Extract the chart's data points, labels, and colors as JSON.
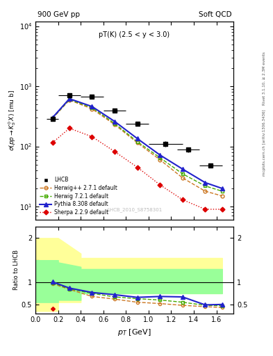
{
  "title_left": "900 GeV pp",
  "title_right": "Soft QCD",
  "annotation": "pT(K) (2.5 < y < 3.0)",
  "watermark": "LHCB_2010_S8758301",
  "rivet_label": "Rivet 3.1.10, ≥ 2.3M events",
  "arxiv_label": "mcplots.cern.ch [arXiv:1306.3436]",
  "ylabel_main": "σ(pp→K°_S X) [mu b]",
  "ylabel_ratio": "Ratio to LHCB",
  "xlabel": "p_T [GeV]",
  "lhcb_x": [
    0.15,
    0.3,
    0.5,
    0.7,
    0.9,
    1.15,
    1.35,
    1.55
  ],
  "lhcb_y": [
    290,
    700,
    680,
    390,
    240,
    110,
    88,
    48
  ],
  "lhcb_xerr": [
    0.05,
    0.1,
    0.1,
    0.1,
    0.1,
    0.15,
    0.1,
    0.1
  ],
  "lhcb_yerr": [
    25,
    50,
    50,
    30,
    18,
    12,
    8,
    4
  ],
  "herwig1_x": [
    0.15,
    0.3,
    0.5,
    0.7,
    0.9,
    1.1,
    1.3,
    1.5,
    1.65
  ],
  "herwig1_y": [
    290,
    590,
    420,
    230,
    115,
    60,
    30,
    18,
    15
  ],
  "herwig2_x": [
    0.15,
    0.3,
    0.5,
    0.7,
    0.9,
    1.1,
    1.3,
    1.5,
    1.65
  ],
  "herwig2_y": [
    295,
    600,
    440,
    240,
    120,
    65,
    35,
    22,
    18
  ],
  "pythia_x": [
    0.15,
    0.3,
    0.5,
    0.7,
    0.9,
    1.1,
    1.3,
    1.5,
    1.65
  ],
  "pythia_y": [
    300,
    620,
    460,
    260,
    135,
    72,
    42,
    25,
    20
  ],
  "sherpa_x": [
    0.15,
    0.3,
    0.5,
    0.7,
    0.9,
    1.1,
    1.3,
    1.5,
    1.65
  ],
  "sherpa_y": [
    115,
    200,
    145,
    82,
    45,
    23,
    13,
    9,
    9
  ],
  "ratio_herwig1_x": [
    0.15,
    0.3,
    0.5,
    0.7,
    0.9,
    1.1,
    1.3,
    1.5,
    1.65
  ],
  "ratio_herwig1_y": [
    0.97,
    0.84,
    0.68,
    0.62,
    0.55,
    0.52,
    0.48,
    0.45,
    0.43
  ],
  "ratio_herwig2_x": [
    0.15,
    0.3,
    0.5,
    0.7,
    0.9,
    1.1,
    1.3,
    1.5,
    1.65
  ],
  "ratio_herwig2_y": [
    0.99,
    0.85,
    0.75,
    0.67,
    0.63,
    0.6,
    0.55,
    0.48,
    0.47
  ],
  "ratio_pythia_x": [
    0.15,
    0.3,
    0.5,
    0.7,
    0.9,
    1.1,
    1.3,
    1.5,
    1.65
  ],
  "ratio_pythia_y": [
    1.01,
    0.87,
    0.77,
    0.72,
    0.66,
    0.68,
    0.67,
    0.49,
    0.5
  ],
  "ratio_sherpa_x": [
    0.15
  ],
  "ratio_sherpa_y": [
    0.4
  ],
  "band_yellow_x": [
    0.0,
    0.2,
    0.2,
    0.4,
    0.4,
    1.65,
    1.65
  ],
  "band_yellow_lo_y": [
    0.35,
    0.35,
    0.55,
    0.55,
    0.75,
    0.75,
    0.75
  ],
  "band_yellow_hi_y": [
    2.0,
    2.0,
    2.0,
    1.65,
    1.55,
    1.55,
    1.55
  ],
  "band_green_x": [
    0.0,
    0.2,
    0.2,
    0.4,
    0.4,
    1.65,
    1.65
  ],
  "band_green_lo_y": [
    0.55,
    0.55,
    0.6,
    0.6,
    0.75,
    0.75,
    0.75
  ],
  "band_green_hi_y": [
    1.5,
    1.5,
    1.45,
    1.35,
    1.3,
    1.3,
    1.3
  ],
  "color_lhcb": "#000000",
  "color_herwig1": "#cc7722",
  "color_herwig2": "#44aa00",
  "color_pythia": "#2222cc",
  "color_sherpa": "#dd0000",
  "color_yellow": "#ffff99",
  "color_green": "#99ff99",
  "ylim_main": [
    6,
    12000
  ],
  "ylim_ratio": [
    0.3,
    2.25
  ],
  "xlim": [
    0.0,
    1.75
  ]
}
